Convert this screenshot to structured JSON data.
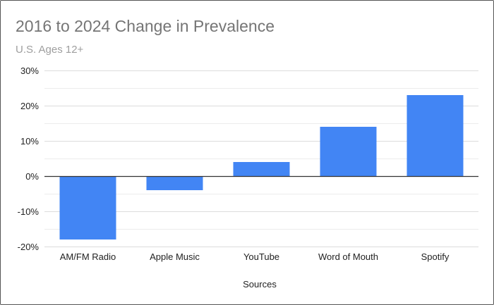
{
  "chart_data": {
    "type": "bar",
    "title": "2016 to 2024 Change in Prevalence",
    "subtitle": "U.S. Ages 12+",
    "xlabel": "Sources",
    "ylabel": "",
    "categories": [
      "AM/FM Radio",
      "Apple Music",
      "YouTube",
      "Word of Mouth",
      "Spotify"
    ],
    "values": [
      -18,
      -4,
      4,
      14,
      23
    ],
    "ylim": [
      -20,
      30
    ],
    "yticks": [
      30,
      20,
      10,
      0,
      -10,
      -20
    ],
    "ytick_labels": [
      "30%",
      "20%",
      "10%",
      "0%",
      "-10%",
      "-20%"
    ],
    "minor_gridlines": true,
    "grid": true,
    "legend": "none",
    "bar_color": "#4285f4",
    "gridline_color": "#e0e0e0",
    "zero_line_color": "#333333"
  }
}
